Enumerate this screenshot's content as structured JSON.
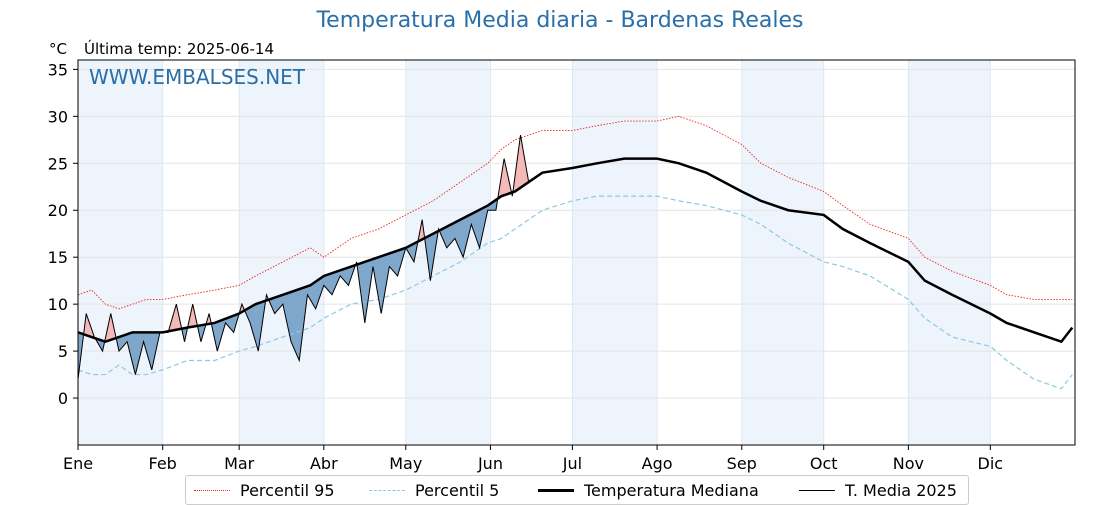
{
  "header": {
    "title": "Temperatura Media diaria - Bardenas Reales",
    "unit": "°C",
    "last_temp": "Última temp: 2025-06-14",
    "watermark": "WWW.EMBALSES.NET"
  },
  "legend": {
    "p95": "Percentil 95",
    "p5": "Percentil 5",
    "median": "Temperatura Mediana",
    "current": "T. Media 2025"
  },
  "colors": {
    "p95": "#e8261f",
    "p5": "#8ec9e2",
    "median": "#000000",
    "current": "#000000",
    "above_fill": "#f4b9b9",
    "below_fill": "#7fa7cc",
    "below_extreme_fill": "#1c5a99",
    "month_band": "#eef4fb",
    "title": "#2a6fa8"
  },
  "chart_data": {
    "type": "line",
    "title": "Temperatura Media diaria - Bardenas Reales",
    "ylabel": "°C",
    "ylim": [
      -5,
      36
    ],
    "yticks": [
      0,
      5,
      10,
      15,
      20,
      25,
      30,
      35
    ],
    "months": [
      "Ene",
      "Feb",
      "Mar",
      "Abr",
      "May",
      "Jun",
      "Jul",
      "Ago",
      "Sep",
      "Oct",
      "Nov",
      "Dic"
    ],
    "month_start_day": [
      0,
      31,
      59,
      90,
      120,
      151,
      181,
      212,
      243,
      273,
      304,
      334
    ],
    "grid": true,
    "legend_position": "bottom",
    "series": [
      {
        "name": "Percentil 95",
        "style": "dotted",
        "x": [
          0,
          5,
          10,
          15,
          20,
          25,
          31,
          40,
          50,
          59,
          65,
          75,
          85,
          90,
          100,
          110,
          120,
          130,
          140,
          150,
          155,
          160,
          165,
          170,
          181,
          190,
          200,
          212,
          220,
          230,
          243,
          250,
          260,
          273,
          280,
          290,
          304,
          310,
          320,
          334,
          340,
          350,
          360,
          364
        ],
        "values": [
          11,
          11.5,
          10,
          9.5,
          10,
          10.5,
          10.5,
          11,
          11.5,
          12,
          13,
          14.5,
          16,
          15,
          17,
          18,
          19.5,
          21,
          23,
          25,
          26.5,
          27.5,
          28,
          28.5,
          28.5,
          29,
          29.5,
          29.5,
          30,
          29,
          27,
          25,
          23.5,
          22,
          20.5,
          18.5,
          17,
          15,
          13.5,
          12,
          11,
          10.5,
          10.5,
          10.5
        ]
      },
      {
        "name": "Percentil 5",
        "style": "dashed",
        "x": [
          0,
          5,
          10,
          15,
          20,
          25,
          31,
          40,
          50,
          59,
          65,
          75,
          85,
          90,
          100,
          110,
          120,
          130,
          140,
          150,
          155,
          160,
          165,
          170,
          181,
          190,
          200,
          212,
          220,
          230,
          243,
          250,
          260,
          273,
          280,
          290,
          304,
          310,
          320,
          334,
          340,
          350,
          360,
          364
        ],
        "values": [
          3,
          2.5,
          2.5,
          3.5,
          2.5,
          2.5,
          3,
          4,
          4,
          5,
          5.5,
          6.5,
          7.5,
          8.5,
          10,
          10.5,
          11.5,
          13,
          14.5,
          16.5,
          17,
          18,
          19,
          20,
          21,
          21.5,
          21.5,
          21.5,
          21,
          20.5,
          19.5,
          18.5,
          16.5,
          14.5,
          14,
          13,
          10.5,
          8.5,
          6.5,
          5.5,
          4,
          2,
          1,
          2.5
        ]
      },
      {
        "name": "Temperatura Mediana",
        "style": "solid-thick",
        "x": [
          0,
          5,
          10,
          15,
          20,
          25,
          31,
          40,
          50,
          59,
          65,
          75,
          85,
          90,
          100,
          110,
          120,
          130,
          140,
          150,
          155,
          160,
          165,
          170,
          181,
          190,
          200,
          212,
          220,
          230,
          243,
          250,
          260,
          273,
          280,
          290,
          304,
          310,
          320,
          334,
          340,
          350,
          360,
          364
        ],
        "values": [
          7,
          6.5,
          6,
          6.5,
          7,
          7,
          7,
          7.5,
          8,
          9,
          10,
          11,
          12,
          13,
          14,
          15,
          16,
          17.5,
          19,
          20.5,
          21.5,
          22,
          23,
          24,
          24.5,
          25,
          25.5,
          25.5,
          25,
          24,
          22,
          21,
          20,
          19.5,
          18,
          16.5,
          14.5,
          12.5,
          11,
          9,
          8,
          7,
          6,
          7.5
        ]
      },
      {
        "name": "T. Media 2025",
        "style": "solid-thin",
        "x": [
          0,
          3,
          6,
          9,
          12,
          15,
          18,
          21,
          24,
          27,
          30,
          33,
          36,
          39,
          42,
          45,
          48,
          51,
          54,
          57,
          60,
          63,
          66,
          69,
          72,
          75,
          78,
          81,
          84,
          87,
          90,
          93,
          96,
          99,
          102,
          105,
          108,
          111,
          114,
          117,
          120,
          123,
          126,
          129,
          132,
          135,
          138,
          141,
          144,
          147,
          150,
          153,
          156,
          159,
          162,
          165
        ],
        "values": [
          2,
          9,
          6.5,
          5,
          9,
          5,
          6,
          2.5,
          6,
          3,
          7,
          7,
          10,
          6,
          10,
          6,
          9,
          5,
          8,
          7,
          10,
          8,
          5,
          11,
          9,
          10,
          6,
          4,
          11,
          9.5,
          12,
          11,
          13,
          12,
          14.5,
          8,
          14,
          9,
          14,
          13,
          16,
          14.5,
          19,
          12.5,
          18,
          16,
          17,
          15,
          18.5,
          16,
          20,
          20,
          25.5,
          21.5,
          28,
          23
        ]
      }
    ]
  }
}
